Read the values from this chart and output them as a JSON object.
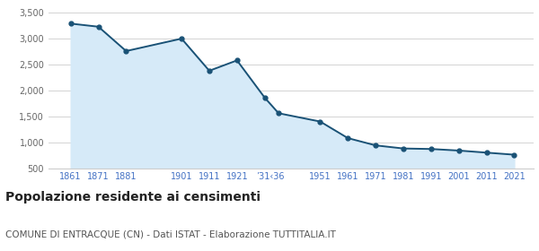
{
  "years": [
    1861,
    1871,
    1881,
    1901,
    1911,
    1921,
    1931,
    1936,
    1951,
    1961,
    1971,
    1981,
    1991,
    2001,
    2011,
    2021
  ],
  "population": [
    3290,
    3230,
    2760,
    3000,
    2380,
    2580,
    1860,
    1560,
    1400,
    1080,
    940,
    880,
    870,
    840,
    800,
    760
  ],
  "line_color": "#1a5276",
  "fill_color": "#d6eaf8",
  "marker": "o",
  "marker_size": 3.5,
  "ylim": [
    500,
    3600
  ],
  "yticks": [
    500,
    1000,
    1500,
    2000,
    2500,
    3000,
    3500
  ],
  "ytick_labels": [
    "500",
    "1,000",
    "1,500",
    "2,000",
    "2,500",
    "3,000",
    "3,500"
  ],
  "title": "Popolazione residente ai censimenti",
  "subtitle": "COMUNE DI ENTRACQUE (CN) - Dati ISTAT - Elaborazione TUTTITALIA.IT",
  "title_fontsize": 10,
  "subtitle_fontsize": 7.5,
  "background_color": "#ffffff",
  "grid_color": "#cccccc",
  "xlim_left": 1853,
  "xlim_right": 2028,
  "xtick_positions": [
    1861,
    1871,
    1881,
    1901,
    1911,
    1921,
    1933,
    1951,
    1961,
    1971,
    1981,
    1991,
    2001,
    2011,
    2021
  ],
  "xtick_labels": [
    "1861",
    "1871",
    "1881",
    "1901",
    "1911",
    "1921",
    "’31‹36",
    "1951",
    "1961",
    "1971",
    "1981",
    "1991",
    "2001",
    "2011",
    "2021"
  ]
}
